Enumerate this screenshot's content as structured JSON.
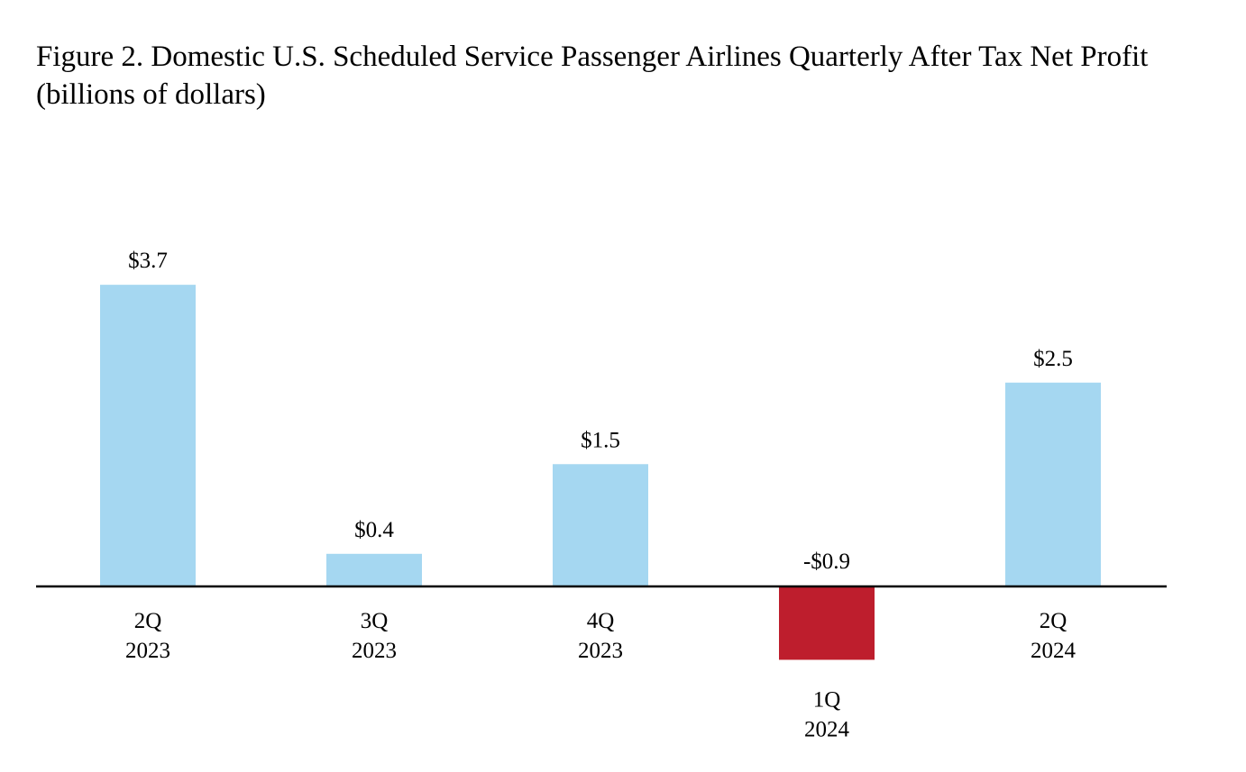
{
  "title": {
    "line1": "Figure 2. Domestic U.S. Scheduled Service Passenger Airlines Quarterly After Tax Net Profit",
    "line2": "(billions of dollars)"
  },
  "colors": {
    "positive": "#a5d7f1",
    "negative": "#be1e2d",
    "axis": "#000000"
  },
  "chart_data": {
    "type": "bar",
    "title": "Figure 2. Domestic U.S. Scheduled Service Passenger Airlines Quarterly After Tax Net Profit (billions of dollars)",
    "xlabel": "",
    "ylabel": "",
    "ylim": [
      -0.9,
      3.7
    ],
    "grid": false,
    "legend": "none",
    "categories": [
      {
        "quarter": "2Q",
        "year": "2023"
      },
      {
        "quarter": "3Q",
        "year": "2023"
      },
      {
        "quarter": "4Q",
        "year": "2023"
      },
      {
        "quarter": "1Q",
        "year": "2024"
      },
      {
        "quarter": "2Q",
        "year": "2024"
      }
    ],
    "values": [
      3.7,
      0.4,
      1.5,
      -0.9,
      2.5
    ],
    "labels": [
      "$3.7",
      "$0.4",
      "$1.5",
      "-$0.9",
      "$2.5"
    ]
  }
}
